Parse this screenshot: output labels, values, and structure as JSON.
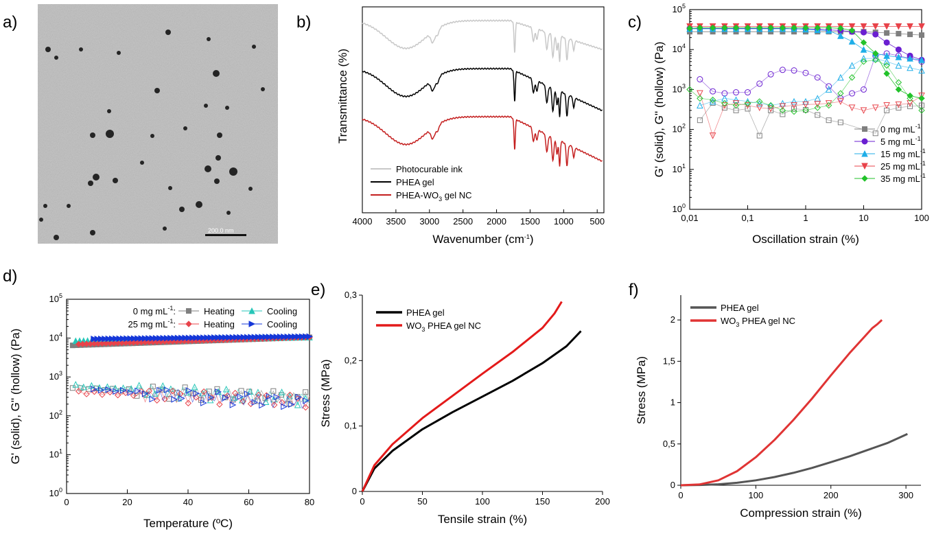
{
  "colors": {
    "grey": "#7f7f7f",
    "light_grey": "#c8c8c8",
    "black": "#000000",
    "red": "#d62020",
    "purple": "#6a1fd1",
    "cyan": "#1faee8",
    "salmon": "#e8434a",
    "green": "#22c22a",
    "teal": "#26c6b8",
    "blue": "#1537d8",
    "dark_grey": "#555555"
  },
  "chart_data": [
    {
      "panel": "a)",
      "type": "image",
      "scale_bar_label": "200.0 nm"
    },
    {
      "panel": "b)",
      "type": "line",
      "xlabel": "Wavenumber (cm",
      "xlabel_sup": "-1",
      "xlabel_end": ")",
      "ylabel": "Transmittance (%)",
      "xlim": [
        4000,
        400
      ],
      "xticks": [
        "4000",
        "3500",
        "3000",
        "2500",
        "2000",
        "1500",
        "1000",
        "500"
      ],
      "xtick_values": [
        4000,
        3500,
        3000,
        2500,
        2000,
        1500,
        1000,
        500
      ],
      "series": [
        {
          "name": "Photocurable ink",
          "color": "#c8c8c8",
          "offset": 0.0
        },
        {
          "name": "PHEA gel",
          "color": "#000000",
          "offset": 1.0
        },
        {
          "name_main": "PHEA-WO",
          "name_sub": "3",
          "name_end": " gel NC",
          "color": "#c41e1e",
          "offset": 2.0
        }
      ],
      "peaks_cm1": [
        3350,
        2950,
        2880,
        1730,
        1450,
        1400,
        1250,
        1160,
        1100,
        1060,
        950,
        850
      ]
    },
    {
      "panel": "c)",
      "type": "scatter",
      "xlabel": "Oscillation strain (%)",
      "ylabel": "G' (solid), G'' (hollow) (Pa)",
      "x_scale": "log",
      "y_scale": "log",
      "xticks": [
        "0,01",
        "0,1",
        "1",
        "10",
        "100"
      ],
      "yticks_exp": [
        "0",
        "1",
        "2",
        "3",
        "4",
        "5"
      ],
      "legend_unit": "mg mL",
      "legend_unit_sup": "-1",
      "series": [
        {
          "name": "0",
          "color": "#7f7f7f",
          "marker": "square",
          "strain": [
            0.01,
            0.015,
            0.025,
            0.04,
            0.063,
            0.1,
            0.16,
            0.25,
            0.4,
            0.63,
            1,
            1.6,
            2.5,
            4,
            6.3,
            10,
            16,
            25,
            40,
            63,
            100
          ],
          "Gp": [
            28000,
            28000,
            28000,
            28000,
            28000,
            28000,
            28000,
            28000,
            28000,
            28000,
            28000,
            28000,
            28000,
            28000,
            28000,
            28000,
            27000,
            26000,
            25000,
            24000,
            23000
          ],
          "Gpp": [
            null,
            170,
            460,
            350,
            300,
            330,
            70,
            300,
            240,
            330,
            310,
            230,
            170,
            150,
            null,
            null,
            80,
            300,
            350,
            380,
            400
          ]
        },
        {
          "name": "5",
          "color": "#6a1fd1",
          "marker": "circle",
          "strain": [
            0.01,
            0.015,
            0.025,
            0.04,
            0.063,
            0.1,
            0.16,
            0.25,
            0.4,
            0.63,
            1,
            1.6,
            2.5,
            4,
            6.3,
            10,
            16,
            25,
            40,
            63,
            100
          ],
          "Gp": [
            34000,
            34000,
            34000,
            34000,
            34000,
            34000,
            34000,
            34000,
            34000,
            33000,
            33000,
            32000,
            31000,
            30000,
            28000,
            27000,
            24000,
            15000,
            10000,
            7000,
            5500
          ],
          "Gpp": [
            null,
            1800,
            900,
            800,
            850,
            850,
            1400,
            2400,
            3100,
            3000,
            2600,
            2000,
            1200,
            600,
            800,
            1000,
            7000,
            8000,
            7000,
            6000,
            5000
          ]
        },
        {
          "name": "15",
          "color": "#1faee8",
          "marker": "triangle-up",
          "strain": [
            0.01,
            0.015,
            0.025,
            0.04,
            0.063,
            0.1,
            0.16,
            0.25,
            0.4,
            0.63,
            1,
            1.6,
            2.5,
            4,
            6.3,
            10,
            16,
            25,
            40,
            63,
            100
          ],
          "Gp": [
            33000,
            33000,
            33000,
            33000,
            33000,
            33000,
            33000,
            33000,
            33000,
            33000,
            32000,
            31000,
            30000,
            22000,
            16000,
            10000,
            8000,
            7000,
            6500,
            6000,
            5500
          ],
          "Gpp": [
            null,
            400,
            500,
            600,
            550,
            500,
            450,
            400,
            450,
            500,
            500,
            600,
            1000,
            2000,
            4000,
            6000,
            6000,
            5000,
            4000,
            3500,
            3000
          ]
        },
        {
          "name": "25",
          "color": "#e8434a",
          "marker": "triangle-down",
          "strain": [
            0.01,
            0.015,
            0.025,
            0.04,
            0.063,
            0.1,
            0.16,
            0.25,
            0.4,
            0.63,
            1,
            1.6,
            2.5,
            4,
            6.3,
            10,
            16,
            25,
            40,
            63,
            100
          ],
          "Gp": [
            38000,
            38000,
            38000,
            38000,
            38000,
            38000,
            38000,
            38000,
            38000,
            38000,
            38000,
            38000,
            38000,
            38000,
            38000,
            38000,
            38000,
            38000,
            38000,
            38000,
            38000
          ],
          "Gpp": [
            null,
            800,
            70,
            400,
            450,
            400,
            350,
            330,
            380,
            400,
            420,
            430,
            450,
            500,
            350,
            300,
            350,
            400,
            420,
            450,
            700
          ]
        },
        {
          "name": "35",
          "color": "#22c22a",
          "marker": "diamond",
          "strain": [
            0.01,
            0.015,
            0.025,
            0.04,
            0.063,
            0.1,
            0.16,
            0.25,
            0.4,
            0.63,
            1,
            1.6,
            2.5,
            4,
            6.3,
            10,
            16,
            25,
            40,
            63,
            100
          ],
          "Gp": [
            34000,
            35000,
            35000,
            35000,
            35000,
            35000,
            35000,
            35000,
            35000,
            35000,
            35000,
            35000,
            35000,
            34000,
            30000,
            15000,
            8000,
            2500,
            1000,
            700,
            600
          ],
          "Gpp": [
            1000,
            600,
            550,
            450,
            400,
            450,
            500,
            400,
            300,
            280,
            300,
            350,
            400,
            800,
            2000,
            5000,
            5500,
            4000,
            1500,
            600,
            300
          ]
        }
      ]
    },
    {
      "panel": "d)",
      "type": "scatter",
      "xlabel": "Temperature (ºC)",
      "ylabel": "G' (solid), G'' (hollow) (Pa)",
      "xlim": [
        0,
        80
      ],
      "xticks": [
        "0",
        "20",
        "40",
        "60",
        "80"
      ],
      "yticks_exp": [
        "0",
        "1",
        "2",
        "3",
        "4",
        "5"
      ],
      "legend_rows": [
        {
          "label": "0 mg mL",
          "label_sup": "-1",
          "label_end": ":",
          "heating": "Heating",
          "cooling": "Cooling"
        },
        {
          "label": "25 mg mL",
          "label_sup": "-1",
          "label_end": ":",
          "heating": "Heating",
          "cooling": "Cooling"
        }
      ],
      "series": [
        {
          "group": "0",
          "mode": "Heating",
          "color": "#7f7f7f",
          "marker": "square",
          "Gp_start": 6500,
          "Gp_end": 10500,
          "Gpp_start": 520,
          "Gpp_end": 300
        },
        {
          "group": "0",
          "mode": "Cooling",
          "color": "#26c6b8",
          "marker": "triangle-up",
          "Gp_start": 8500,
          "Gp_end": 10500,
          "Gpp_start": 600,
          "Gpp_end": 280
        },
        {
          "group": "25",
          "mode": "Heating",
          "color": "#e8434a",
          "marker": "diamond",
          "Gp_start": 7000,
          "Gp_end": 10500,
          "Gpp_start": 400,
          "Gpp_end": 250
        },
        {
          "group": "25",
          "mode": "Cooling",
          "color": "#1537d8",
          "marker": "triangle-right",
          "Gp_start": 9500,
          "Gp_end": 11000,
          "Gpp_start": 480,
          "Gpp_end": 220
        }
      ]
    },
    {
      "panel": "e)",
      "type": "line",
      "xlabel": "Tensile strain (%)",
      "ylabel": "Stress (MPa)",
      "xlim": [
        0,
        200
      ],
      "ylim": [
        0,
        0.3
      ],
      "xticks": [
        "0",
        "50",
        "100",
        "150",
        "200"
      ],
      "yticks": [
        "0",
        "0,1",
        "0,2",
        "0,3"
      ],
      "series": [
        {
          "name": "PHEA gel",
          "color": "#000000",
          "x": [
            0,
            10,
            25,
            50,
            75,
            100,
            125,
            150,
            170,
            182
          ],
          "y": [
            0,
            0.035,
            0.062,
            0.095,
            0.121,
            0.145,
            0.169,
            0.196,
            0.222,
            0.245
          ]
        },
        {
          "name_main": "WO",
          "name_sub": "3",
          "name_end": " PHEA gel NC",
          "color": "#e31a1a",
          "x": [
            0,
            10,
            25,
            50,
            75,
            100,
            125,
            150,
            160,
            166
          ],
          "y": [
            0,
            0.04,
            0.072,
            0.112,
            0.146,
            0.18,
            0.213,
            0.25,
            0.272,
            0.29
          ]
        }
      ]
    },
    {
      "panel": "f)",
      "type": "line",
      "xlabel": "Compression strain (%)",
      "ylabel": "Stress (MPa)",
      "xlim": [
        0,
        320
      ],
      "ylim": [
        0,
        2.3
      ],
      "xticks": [
        "0",
        "100",
        "200",
        "300"
      ],
      "yticks": [
        "0",
        "0,5",
        "1",
        "1,5",
        "2"
      ],
      "series": [
        {
          "name": "PHEA gel",
          "color": "#555555",
          "x": [
            0,
            25,
            50,
            75,
            100,
            125,
            150,
            175,
            200,
            225,
            250,
            275,
            302
          ],
          "y": [
            0,
            0.003,
            0.012,
            0.03,
            0.06,
            0.1,
            0.15,
            0.21,
            0.28,
            0.35,
            0.43,
            0.51,
            0.62
          ]
        },
        {
          "name_main": "WO",
          "name_sub": "3",
          "name_end": " PHEA gel NC",
          "color": "#e03434",
          "x": [
            0,
            25,
            50,
            75,
            100,
            125,
            150,
            175,
            200,
            225,
            245,
            255,
            262,
            268
          ],
          "y": [
            0,
            0.01,
            0.06,
            0.17,
            0.34,
            0.55,
            0.79,
            1.05,
            1.33,
            1.6,
            1.8,
            1.9,
            1.95,
            2.0
          ]
        }
      ]
    }
  ]
}
